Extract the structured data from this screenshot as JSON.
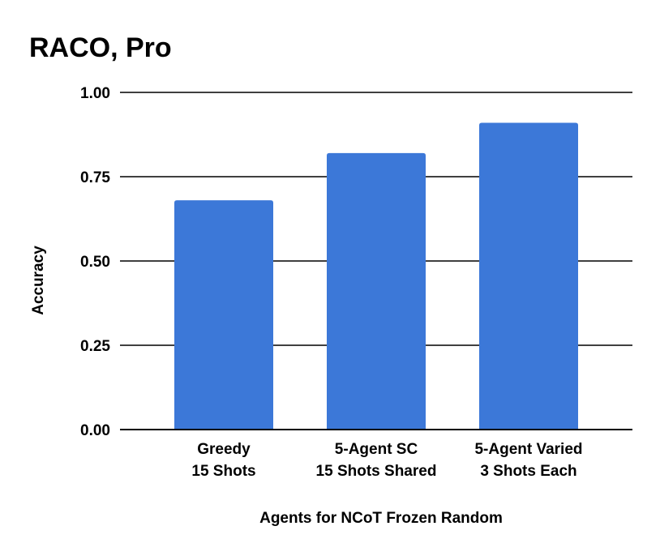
{
  "chart_data": {
    "type": "bar",
    "title": "RACO, Pro",
    "xlabel": "Agents for NCoT Frozen Random",
    "ylabel": "Accuracy",
    "categories": [
      [
        "Greedy",
        "15 Shots"
      ],
      [
        "5-Agent SC",
        "15 Shots Shared"
      ],
      [
        "5-Agent Varied",
        "3 Shots Each"
      ]
    ],
    "values": [
      0.68,
      0.82,
      0.91
    ],
    "ylim": [
      0,
      1
    ],
    "yticks": [
      "0.00",
      "0.25",
      "0.50",
      "0.75",
      "1.00"
    ],
    "grid": true,
    "legend": "none",
    "colors": {
      "bar": "#3c78d8",
      "grid": "#000000",
      "text": "#000000"
    }
  }
}
